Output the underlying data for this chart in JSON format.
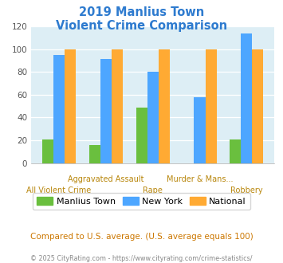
{
  "title_line1": "2019 Manlius Town",
  "title_line2": "Violent Crime Comparison",
  "categories": [
    "All Violent Crime",
    "Aggravated Assault",
    "Rape",
    "Murder & Mans...",
    "Robbery"
  ],
  "top_labels": {
    "1": "Aggravated Assault",
    "3": "Murder & Mans..."
  },
  "bottom_labels": {
    "0": "All Violent Crime",
    "2": "Rape",
    "4": "Robbery"
  },
  "manlius": [
    21,
    16,
    49,
    0,
    21
  ],
  "new_york": [
    95,
    91,
    80,
    58,
    114
  ],
  "national": [
    100,
    100,
    100,
    100,
    100
  ],
  "manlius_color": "#6abf3e",
  "new_york_color": "#4da6ff",
  "national_color": "#ffaa33",
  "ylim": [
    0,
    120
  ],
  "yticks": [
    0,
    20,
    40,
    60,
    80,
    100,
    120
  ],
  "background_color": "#ddeef5",
  "title_color": "#2e7bcf",
  "xlabel_color": "#b8860b",
  "subtitle_note": "Compared to U.S. average. (U.S. average equals 100)",
  "footer": "© 2025 CityRating.com - https://www.cityrating.com/crime-statistics/",
  "legend_labels": [
    "Manlius Town",
    "New York",
    "National"
  ]
}
